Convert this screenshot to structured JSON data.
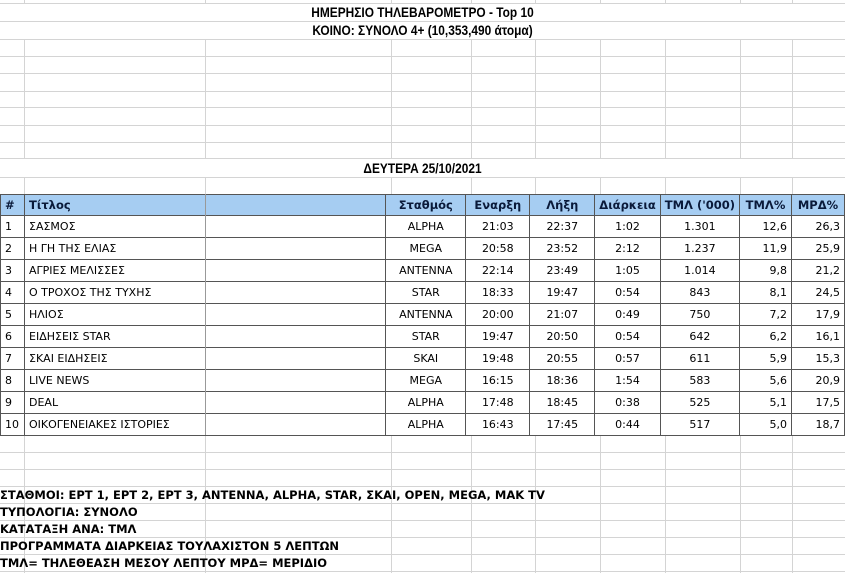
{
  "header": {
    "title": "ΗΜΕΡΗΣΙΟ ΤΗΛΕΒΑΡΟΜΕΤΡΟ - Top 10",
    "audience": "ΚΟΙΝΟ: ΣΥΝΟΛΟ 4+ (10,353,490 άτομα)",
    "date": "ΔΕΥΤΕΡΑ 25/10/2021"
  },
  "table": {
    "columns": [
      "#",
      "Τίτλος",
      "Σταθμός",
      "Εναρξη",
      "Λήξη",
      "Διάρκεια",
      "ΤΜΛ ('000)",
      "ΤΜΛ%",
      "ΜΡΔ%"
    ],
    "rows": [
      [
        "1",
        "ΣΑΣΜΟΣ",
        "ALPHA",
        "21:03",
        "22:37",
        "1:02",
        "1.301",
        "12,6",
        "26,3"
      ],
      [
        "2",
        "Η ΓΗ ΤΗΣ ΕΛΙΑΣ",
        "MEGA",
        "20:58",
        "23:52",
        "2:12",
        "1.237",
        "11,9",
        "25,9"
      ],
      [
        "3",
        "ΑΓΡΙΕΣ ΜΕΛΙΣΣΕΣ",
        "ANTENNA",
        "22:14",
        "23:49",
        "1:05",
        "1.014",
        "9,8",
        "21,2"
      ],
      [
        "4",
        "Ο ΤΡΟΧΟΣ ΤΗΣ ΤΥΧΗΣ",
        "STAR",
        "18:33",
        "19:47",
        "0:54",
        "843",
        "8,1",
        "24,5"
      ],
      [
        "5",
        "ΗΛΙΟΣ",
        "ANTENNA",
        "20:00",
        "21:07",
        "0:49",
        "750",
        "7,2",
        "17,9"
      ],
      [
        "6",
        "ΕΙΔΗΣΕΙΣ STAR",
        "STAR",
        "19:47",
        "20:50",
        "0:54",
        "642",
        "6,2",
        "16,1"
      ],
      [
        "7",
        "ΣΚΑΙ ΕΙΔΗΣΕΙΣ",
        "SKAI",
        "19:48",
        "20:55",
        "0:57",
        "611",
        "5,9",
        "15,3"
      ],
      [
        "8",
        "LIVE NEWS",
        "MEGA",
        "16:15",
        "18:36",
        "1:54",
        "583",
        "5,6",
        "20,9"
      ],
      [
        "9",
        "DEAL",
        "ALPHA",
        "17:48",
        "18:45",
        "0:38",
        "525",
        "5,1",
        "17,5"
      ],
      [
        "10",
        "ΟΙΚΟΓΕΝΕΙΑΚΕΣ ΙΣΤΟΡΙΕΣ",
        "ALPHA",
        "16:43",
        "17:45",
        "0:44",
        "517",
        "5,0",
        "18,7"
      ]
    ]
  },
  "footer": [
    "ΣΤΑΘΜΟΙ: ΕΡΤ 1, ΕΡΤ 2, ΕΡΤ 3, ANTENNA, ALPHA, STAR, ΣΚΑΙ, OPEN, MEGA, MAK TV",
    "ΤΥΠΟΛΟΓΙΑ: ΣΥΝΟΛΟ",
    "ΚΑΤΑΤΑΞΗ ΑΝΑ: ΤΜΛ",
    "ΠΡΟΓΡΑΜΜΑΤΑ ΔΙΑΡΚΕΙΑΣ ΤΟΥΛΑΧΙΣΤΟΝ 5 ΛΕΠΤΩΝ",
    "ΤΜΛ= ΤΗΛΕΘΕΑΣΗ ΜΕΣΟΥ ΛΕΠΤΟΥ   ΜΡΔ= ΜΕΡΙΔΙΟ"
  ],
  "colors": {
    "header_bg": "#a6cdf2"
  }
}
